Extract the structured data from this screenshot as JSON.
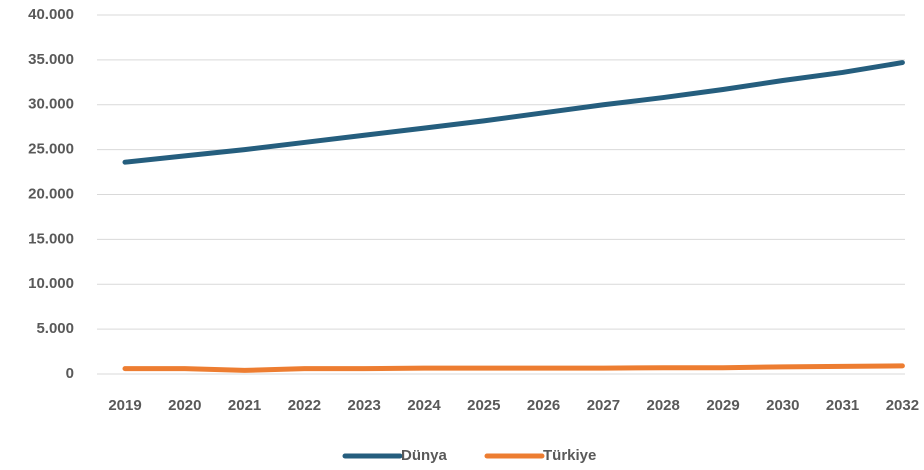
{
  "chart_data": {
    "type": "line",
    "categories": [
      "2019",
      "2020",
      "2021",
      "2022",
      "2023",
      "2024",
      "2025",
      "2026",
      "2027",
      "2028",
      "2029",
      "2030",
      "2031",
      "2032"
    ],
    "series": [
      {
        "name": "Dünya",
        "color": "#255e7e",
        "values": [
          23600,
          24300,
          25000,
          25800,
          26600,
          27400,
          28200,
          29100,
          30000,
          30800,
          31700,
          32700,
          33600,
          34700
        ]
      },
      {
        "name": "Türkiye",
        "color": "#ed7d31",
        "values": [
          600,
          600,
          400,
          600,
          600,
          650,
          650,
          650,
          650,
          700,
          700,
          800,
          850,
          900
        ]
      }
    ],
    "ylim": [
      0,
      40000
    ],
    "yticks": [
      0,
      {
        "value": 5000,
        "label": "5.000"
      },
      {
        "value": 10000,
        "label": "10.000"
      },
      {
        "value": 15000,
        "label": "15.000"
      },
      {
        "value": 20000,
        "label": "20.000"
      },
      {
        "value": 25000,
        "label": "25.000"
      },
      {
        "value": 30000,
        "label": "30.000"
      },
      {
        "value": 35000,
        "label": "35.000"
      },
      {
        "value": 40000,
        "label": "40.000"
      }
    ],
    "grid": true,
    "legend": "bottom"
  }
}
